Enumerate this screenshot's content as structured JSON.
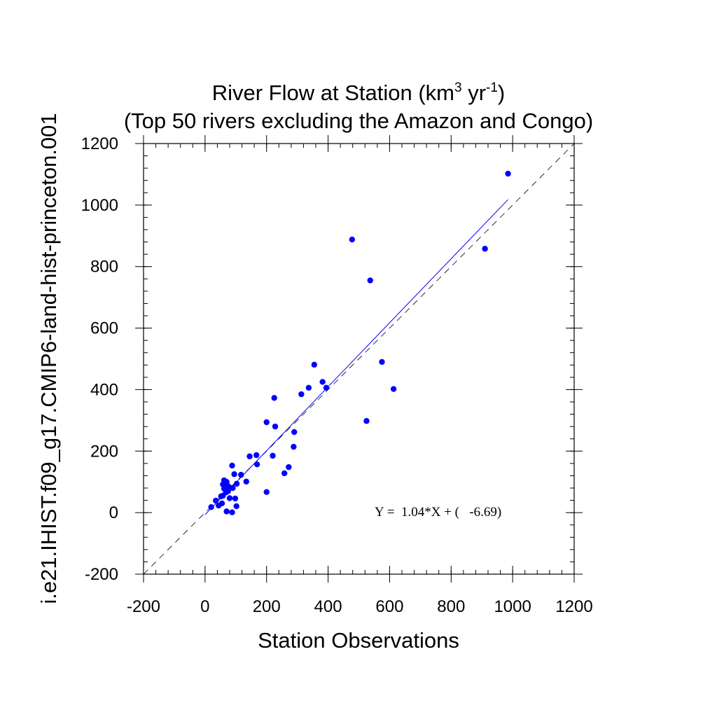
{
  "chart_data": {
    "type": "scatter",
    "title_main": "River Flow at Station (km",
    "title_sup1": "3",
    "title_mid": " yr",
    "title_sup2": "-1",
    "title_end": ")",
    "subtitle": "(Top 50 rivers excluding the Amazon and Congo)",
    "xlabel": "Station Observations",
    "ylabel": "i.e21.IHIST.f09_g17.CMIP6-land-hist-princeton.001",
    "xlim": [
      -200,
      1200
    ],
    "ylim": [
      -200,
      1200
    ],
    "xticks": [
      -200,
      0,
      200,
      400,
      600,
      800,
      1000,
      1200
    ],
    "yticks": [
      -200,
      0,
      200,
      400,
      600,
      800,
      1000,
      1200
    ],
    "xtick_labels": [
      "-200",
      "0",
      "200",
      "400",
      "600",
      "800",
      "1000",
      "1200"
    ],
    "ytick_labels": [
      "-200",
      "0",
      "200",
      "400",
      "600",
      "800",
      "1000",
      "1200"
    ],
    "grid": false,
    "point_color": "#0000ff",
    "fit_color": "#0000ff",
    "identity_color": "#000000",
    "regression": {
      "slope": 1.04,
      "intercept": -6.69,
      "x_range": [
        0,
        985
      ]
    },
    "equation_label": "Y =  1.04*X + (   -6.69)",
    "points": [
      [
        985,
        1102
      ],
      [
        910,
        858
      ],
      [
        478,
        888
      ],
      [
        537,
        755
      ],
      [
        575,
        490
      ],
      [
        613,
        402
      ],
      [
        525,
        298
      ],
      [
        355,
        481
      ],
      [
        382,
        425
      ],
      [
        337,
        406
      ],
      [
        394,
        406
      ],
      [
        313,
        385
      ],
      [
        225,
        373
      ],
      [
        200,
        294
      ],
      [
        228,
        280
      ],
      [
        290,
        262
      ],
      [
        288,
        214
      ],
      [
        167,
        187
      ],
      [
        145,
        183
      ],
      [
        220,
        185
      ],
      [
        169,
        157
      ],
      [
        272,
        148
      ],
      [
        258,
        128
      ],
      [
        88,
        153
      ],
      [
        95,
        125
      ],
      [
        117,
        123
      ],
      [
        134,
        101
      ],
      [
        103,
        94
      ],
      [
        62,
        105
      ],
      [
        70,
        100
      ],
      [
        58,
        92
      ],
      [
        73,
        88
      ],
      [
        65,
        85
      ],
      [
        80,
        82
      ],
      [
        62,
        78
      ],
      [
        90,
        80
      ],
      [
        75,
        70
      ],
      [
        68,
        66
      ],
      [
        200,
        67
      ],
      [
        58,
        55
      ],
      [
        52,
        53
      ],
      [
        80,
        47
      ],
      [
        98,
        46
      ],
      [
        35,
        39
      ],
      [
        55,
        30
      ],
      [
        44,
        23
      ],
      [
        20,
        18
      ],
      [
        102,
        21
      ],
      [
        70,
        4
      ],
      [
        88,
        1
      ]
    ]
  }
}
